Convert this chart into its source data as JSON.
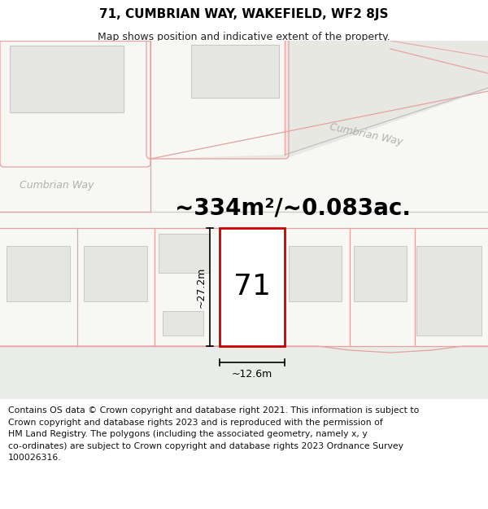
{
  "title": "71, CUMBRIAN WAY, WAKEFIELD, WF2 8JS",
  "subtitle": "Map shows position and indicative extent of the property.",
  "area_text": "~334m²/~0.083ac.",
  "width_label": "~12.6m",
  "height_label": "~27.2m",
  "number_label": "71",
  "road_label_left": "Cumbrian Way",
  "road_label_right": "Cumbrian Way",
  "copyright_text": "Contains OS data © Crown copyright and database right 2021. This information is subject to\nCrown copyright and database rights 2023 and is reproduced with the permission of\nHM Land Registry. The polygons (including the associated geometry, namely x, y\nco-ordinates) are subject to Crown copyright and database rights 2023 Ordnance Survey\n100026316.",
  "bg_color": "#f7f7f4",
  "title_bg": "#ffffff",
  "map_bg": "#f7f7f4",
  "road_green": "#e8ede8",
  "road_gray": "#e8e8e3",
  "plot_red": "#cc0000",
  "neighbor_pink": "#e8a0a0",
  "building_fill": "#e5e5e2",
  "building_border": "#c8c8c8",
  "copyright_bg": "#eeeee9",
  "title_fontsize": 11,
  "subtitle_fontsize": 9,
  "area_fontsize": 20,
  "number_fontsize": 26,
  "road_label_fontsize": 9,
  "copyright_fontsize": 7.8,
  "dim_fontsize": 9
}
